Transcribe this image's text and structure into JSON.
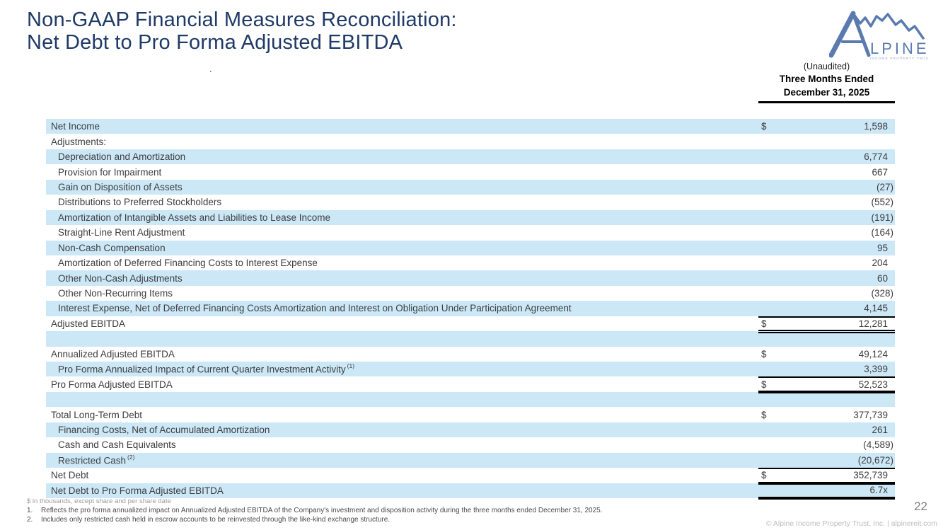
{
  "slide": {
    "title_line1": "Non-GAAP Financial Measures Reconciliation:",
    "title_line2": "Net Debt to Pro Forma Adjusted EBITDA",
    "stray_dot": "."
  },
  "logo": {
    "brand_rest": "LPINE",
    "tagline": "INCOME PROPERTY TRUST"
  },
  "column_header": {
    "unaudited": "(Unaudited)",
    "period_line1": "Three Months Ended",
    "period_line2": "December 31, 2025"
  },
  "table": {
    "rows": [
      {
        "label": "Net Income",
        "indent": 0,
        "dollar": true,
        "value": "1,598",
        "shade": true
      },
      {
        "label": "Adjustments:",
        "indent": 0,
        "shade": false
      },
      {
        "label": "Depreciation and Amortization",
        "indent": 1,
        "value": "6,774",
        "shade": true
      },
      {
        "label": "Provision for Impairment",
        "indent": 1,
        "value": "667",
        "shade": false
      },
      {
        "label": "Gain on Disposition of Assets",
        "indent": 1,
        "value": "(27)",
        "shade": true
      },
      {
        "label": "Distributions to Preferred Stockholders",
        "indent": 1,
        "value": "(552)",
        "shade": false
      },
      {
        "label": "Amortization of Intangible Assets and Liabilities to Lease Income",
        "indent": 1,
        "value": "(191)",
        "shade": true
      },
      {
        "label": "Straight-Line Rent Adjustment",
        "indent": 1,
        "value": "(164)",
        "shade": false
      },
      {
        "label": "Non-Cash Compensation",
        "indent": 1,
        "value": "95",
        "shade": true
      },
      {
        "label": "Amortization of Deferred Financing Costs to Interest Expense",
        "indent": 1,
        "value": "204",
        "shade": false
      },
      {
        "label": "Other Non-Cash Adjustments",
        "indent": 1,
        "value": "60",
        "shade": true
      },
      {
        "label": "Other Non-Recurring Items",
        "indent": 1,
        "value": "(328)",
        "shade": false
      },
      {
        "label": "Interest Expense, Net of Deferred Financing Costs Amortization and Interest on Obligation Under Participation Agreement",
        "indent": 1,
        "value": "4,145",
        "shade": true
      },
      {
        "label": "Adjusted EBITDA",
        "indent": 0,
        "dollar": true,
        "value": "12,281",
        "shade": false,
        "vtop": true,
        "vbottom": "double"
      },
      {
        "label": "",
        "spacer": true,
        "shade": true
      },
      {
        "label": "Annualized Adjusted EBITDA",
        "indent": 0,
        "dollar": true,
        "value": "49,124",
        "shade": false
      },
      {
        "label": "Pro Forma Annualized Impact of Current Quarter Investment Activity",
        "sup": "(1)",
        "indent": 1,
        "value": "3,399",
        "shade": true
      },
      {
        "label": "Pro Forma Adjusted EBITDA",
        "indent": 0,
        "dollar": true,
        "value": "52,523",
        "shade": false,
        "vtop": true,
        "vbottom": "double"
      },
      {
        "label": "",
        "spacer": true,
        "shade": true
      },
      {
        "label": "Total Long-Term Debt",
        "indent": 0,
        "dollar": true,
        "value": "377,739",
        "shade": false
      },
      {
        "label": "Financing Costs, Net of Accumulated Amortization",
        "indent": 1,
        "value": "261",
        "shade": true
      },
      {
        "label": "Cash and Cash Equivalents",
        "indent": 1,
        "value": "(4,589)",
        "shade": false
      },
      {
        "label": "Restricted Cash",
        "sup": "(2)",
        "indent": 1,
        "value": "(20,672)",
        "shade": true
      },
      {
        "label": "Net Debt",
        "indent": 0,
        "dollar": true,
        "value": "352,739",
        "shade": false,
        "vtop": true,
        "vbottom": "double"
      },
      {
        "label": "Net Debt to Pro Forma Adjusted EBITDA",
        "indent": 0,
        "value": "6.7x",
        "shade": true,
        "vbottom": "double"
      }
    ]
  },
  "footnotes": {
    "units": "$ in thousands, except share and per share date",
    "notes": [
      {
        "num": "1.",
        "text": "Reflects the pro forma annualized impact on Annualized Adjusted EBITDA of the Company's investment and disposition activity during the three months ended December 31, 2025."
      },
      {
        "num": "2.",
        "text": "Includes only restricted cash held in escrow accounts to be reinvested through the like-kind exchange structure."
      }
    ]
  },
  "footer": {
    "page_number": "22",
    "copyright": "© Alpine Income Property Trust, Inc.  |  alpinereit.com"
  },
  "colors": {
    "row_shade": "#cce8f7",
    "title": "#1f3a67",
    "text": "#3d3d3d",
    "logo_blue": "#5a7ab0",
    "logo_light": "#93a9c9"
  }
}
